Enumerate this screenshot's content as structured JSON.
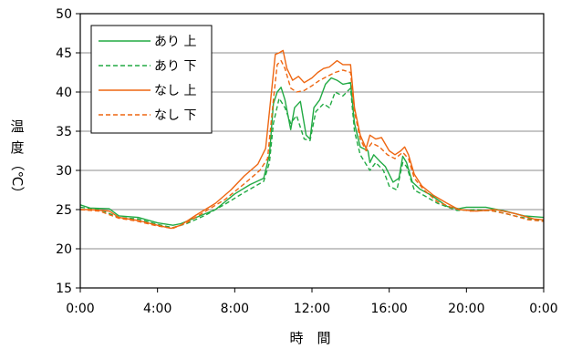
{
  "chart_data": {
    "type": "line",
    "title": "",
    "xlabel": "時　間",
    "ylabel": [
      "温",
      "度",
      "（℃）"
    ],
    "x_unit": "hours",
    "xlim": [
      0,
      24
    ],
    "ylim": [
      15,
      50
    ],
    "x_ticks": [
      0,
      4,
      8,
      12,
      16,
      20,
      24
    ],
    "x_tick_labels": [
      "0:00",
      "4:00",
      "8:00",
      "12:00",
      "16:00",
      "20:00",
      "0:00"
    ],
    "y_ticks": [
      15,
      20,
      25,
      30,
      35,
      40,
      45,
      50
    ],
    "grid": "horizontal",
    "legend_position": "top-left",
    "series": [
      {
        "name": "あり 上",
        "color": "#22aa44",
        "dash": "solid",
        "points": [
          [
            0,
            25.6
          ],
          [
            0.5,
            25.2
          ],
          [
            1.5,
            25.1
          ],
          [
            2,
            24.2
          ],
          [
            3,
            24.0
          ],
          [
            4,
            23.3
          ],
          [
            4.8,
            23.0
          ],
          [
            5.2,
            23.2
          ],
          [
            6,
            24.0
          ],
          [
            7,
            25.0
          ],
          [
            8,
            27.0
          ],
          [
            8.8,
            28.2
          ],
          [
            9.5,
            29.0
          ],
          [
            9.8,
            32.0
          ],
          [
            10.0,
            38.5
          ],
          [
            10.2,
            40.0
          ],
          [
            10.4,
            40.6
          ],
          [
            10.6,
            39.0
          ],
          [
            10.9,
            35.2
          ],
          [
            11.1,
            38.0
          ],
          [
            11.4,
            38.8
          ],
          [
            11.7,
            34.5
          ],
          [
            11.9,
            34.0
          ],
          [
            12.1,
            38.0
          ],
          [
            12.4,
            39.0
          ],
          [
            12.7,
            41.0
          ],
          [
            13.0,
            41.8
          ],
          [
            13.3,
            41.5
          ],
          [
            13.6,
            41.0
          ],
          [
            14.0,
            41.2
          ],
          [
            14.2,
            36.0
          ],
          [
            14.5,
            33.0
          ],
          [
            14.9,
            32.5
          ],
          [
            15.0,
            31.0
          ],
          [
            15.2,
            32.0
          ],
          [
            15.5,
            31.2
          ],
          [
            15.8,
            30.5
          ],
          [
            16.2,
            28.5
          ],
          [
            16.5,
            29.0
          ],
          [
            16.7,
            31.8
          ],
          [
            16.9,
            31.0
          ],
          [
            17.2,
            28.5
          ],
          [
            17.6,
            27.6
          ],
          [
            18.2,
            26.8
          ],
          [
            19,
            25.4
          ],
          [
            19.6,
            25.1
          ],
          [
            20,
            25.3
          ],
          [
            21,
            25.3
          ],
          [
            22,
            24.8
          ],
          [
            23,
            24.2
          ],
          [
            24,
            24.0
          ]
        ]
      },
      {
        "name": "あり 下",
        "color": "#22aa44",
        "dash": "dashed",
        "points": [
          [
            0,
            25.3
          ],
          [
            1,
            25.0
          ],
          [
            2,
            24.0
          ],
          [
            3,
            23.8
          ],
          [
            4,
            23.1
          ],
          [
            4.8,
            22.7
          ],
          [
            5.5,
            23.2
          ],
          [
            6.5,
            24.3
          ],
          [
            7.5,
            25.7
          ],
          [
            8.5,
            27.2
          ],
          [
            9.5,
            28.6
          ],
          [
            9.8,
            31.0
          ],
          [
            10.0,
            36.0
          ],
          [
            10.3,
            39.2
          ],
          [
            10.6,
            38.0
          ],
          [
            10.9,
            36.0
          ],
          [
            11.2,
            37.0
          ],
          [
            11.6,
            34.0
          ],
          [
            11.9,
            33.8
          ],
          [
            12.2,
            37.5
          ],
          [
            12.6,
            38.5
          ],
          [
            12.9,
            38.0
          ],
          [
            13.2,
            40.0
          ],
          [
            13.6,
            39.5
          ],
          [
            14.0,
            40.5
          ],
          [
            14.2,
            35.0
          ],
          [
            14.5,
            32.0
          ],
          [
            15.0,
            30.0
          ],
          [
            15.3,
            31.0
          ],
          [
            15.7,
            30.0
          ],
          [
            16.0,
            28.0
          ],
          [
            16.4,
            27.5
          ],
          [
            16.7,
            31.0
          ],
          [
            16.9,
            30.5
          ],
          [
            17.3,
            27.5
          ],
          [
            17.8,
            26.8
          ],
          [
            18.5,
            25.8
          ],
          [
            19.5,
            24.9
          ],
          [
            20.5,
            25.0
          ],
          [
            21.5,
            24.8
          ],
          [
            22.5,
            24.2
          ],
          [
            23.5,
            23.7
          ],
          [
            24,
            23.6
          ]
        ]
      },
      {
        "name": "なし 上",
        "color": "#ee6611",
        "dash": "solid",
        "points": [
          [
            0,
            25.0
          ],
          [
            0.5,
            25.0
          ],
          [
            1.5,
            24.8
          ],
          [
            2,
            24.0
          ],
          [
            3,
            23.6
          ],
          [
            4,
            23.0
          ],
          [
            4.7,
            22.6
          ],
          [
            5.2,
            23.0
          ],
          [
            6,
            24.3
          ],
          [
            7,
            25.8
          ],
          [
            7.8,
            27.5
          ],
          [
            8.5,
            29.3
          ],
          [
            9.2,
            30.8
          ],
          [
            9.6,
            32.8
          ],
          [
            9.9,
            40.0
          ],
          [
            10.1,
            44.8
          ],
          [
            10.3,
            45.0
          ],
          [
            10.5,
            45.3
          ],
          [
            10.7,
            43.0
          ],
          [
            11.0,
            41.5
          ],
          [
            11.3,
            42.0
          ],
          [
            11.6,
            41.2
          ],
          [
            12.0,
            41.8
          ],
          [
            12.3,
            42.5
          ],
          [
            12.6,
            43.0
          ],
          [
            12.9,
            43.2
          ],
          [
            13.3,
            44.0
          ],
          [
            13.6,
            43.5
          ],
          [
            14.0,
            43.5
          ],
          [
            14.2,
            38.0
          ],
          [
            14.5,
            34.5
          ],
          [
            14.8,
            32.8
          ],
          [
            15.0,
            34.5
          ],
          [
            15.3,
            34.0
          ],
          [
            15.6,
            34.2
          ],
          [
            16.0,
            32.5
          ],
          [
            16.3,
            32.0
          ],
          [
            16.6,
            32.5
          ],
          [
            16.8,
            33.0
          ],
          [
            17.0,
            32.0
          ],
          [
            17.3,
            29.5
          ],
          [
            17.7,
            28.0
          ],
          [
            18.3,
            26.8
          ],
          [
            19,
            25.8
          ],
          [
            19.6,
            25.0
          ],
          [
            20.5,
            24.8
          ],
          [
            21.5,
            25.0
          ],
          [
            22.5,
            24.5
          ],
          [
            23.5,
            23.8
          ],
          [
            24,
            23.7
          ]
        ]
      },
      {
        "name": "なし 下",
        "color": "#ee6611",
        "dash": "dashed",
        "points": [
          [
            0,
            25.0
          ],
          [
            1,
            24.8
          ],
          [
            2,
            23.9
          ],
          [
            3,
            23.5
          ],
          [
            4,
            22.9
          ],
          [
            4.8,
            22.6
          ],
          [
            5.5,
            23.3
          ],
          [
            6.5,
            24.8
          ],
          [
            7.5,
            26.3
          ],
          [
            8.5,
            28.3
          ],
          [
            9.3,
            30.0
          ],
          [
            9.7,
            31.5
          ],
          [
            10.0,
            39.0
          ],
          [
            10.2,
            43.5
          ],
          [
            10.4,
            44.0
          ],
          [
            10.6,
            43.0
          ],
          [
            10.9,
            40.5
          ],
          [
            11.2,
            40.0
          ],
          [
            11.6,
            40.2
          ],
          [
            12.0,
            40.8
          ],
          [
            12.4,
            41.5
          ],
          [
            12.8,
            42.0
          ],
          [
            13.2,
            42.5
          ],
          [
            13.6,
            42.8
          ],
          [
            14.0,
            42.5
          ],
          [
            14.2,
            37.5
          ],
          [
            14.5,
            34.0
          ],
          [
            14.8,
            32.5
          ],
          [
            15.1,
            33.5
          ],
          [
            15.5,
            33.0
          ],
          [
            15.9,
            32.0
          ],
          [
            16.3,
            31.5
          ],
          [
            16.7,
            32.3
          ],
          [
            17.0,
            31.5
          ],
          [
            17.3,
            29.0
          ],
          [
            17.8,
            27.5
          ],
          [
            18.5,
            26.0
          ],
          [
            19.3,
            25.2
          ],
          [
            20.2,
            24.8
          ],
          [
            21.2,
            24.9
          ],
          [
            22.2,
            24.4
          ],
          [
            23.2,
            23.7
          ],
          [
            24,
            23.5
          ]
        ]
      }
    ]
  }
}
